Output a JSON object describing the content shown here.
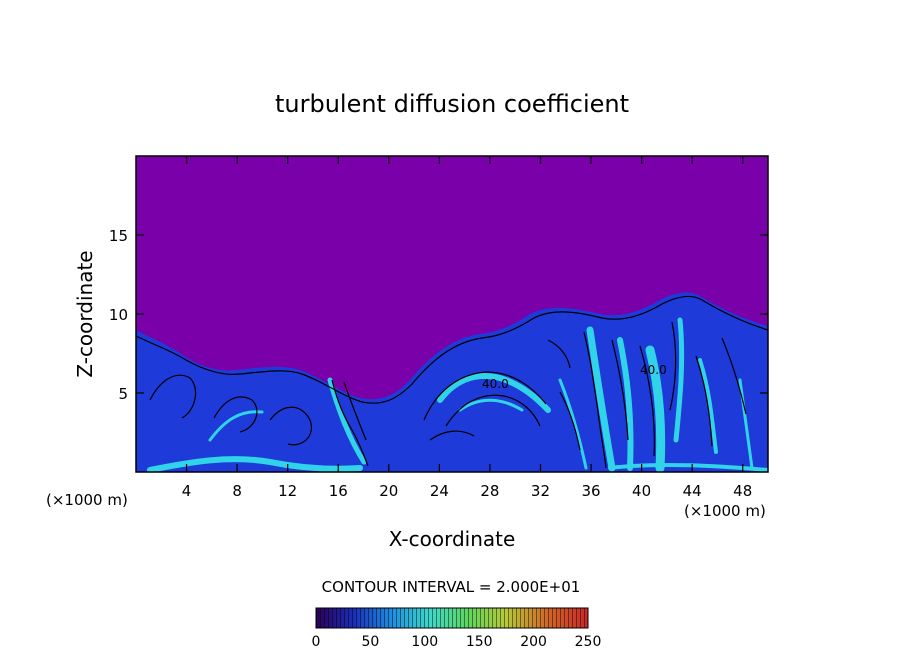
{
  "chart_data": {
    "type": "heatmap",
    "title": "turbulent diffusion coefficient",
    "xlabel": "X-coordinate",
    "ylabel": "Z-coordinate",
    "x_unit_left": "(×1000 m)",
    "x_unit_right": "(×1000 m)",
    "xlim": [
      0,
      50
    ],
    "ylim": [
      0,
      20
    ],
    "x_ticks": [
      4,
      8,
      12,
      16,
      20,
      24,
      28,
      32,
      36,
      40,
      44,
      48
    ],
    "y_ticks": [
      5,
      10,
      15
    ],
    "contour_interval_text": "CONTOUR INTERVAL = 2.000E+01",
    "contour_labels": [
      "40.0",
      "40.0"
    ],
    "colorbar": {
      "min": 0,
      "max": 250,
      "ticks": [
        0,
        50,
        100,
        150,
        200,
        250
      ],
      "colors": [
        "#2a0058",
        "#1a2fb8",
        "#1f8fe0",
        "#3fd8c8",
        "#5ed65e",
        "#b8c838",
        "#d06828",
        "#c82828"
      ]
    },
    "colors": {
      "background_field": "#7a00aa",
      "turbulence_low": "#1e3ad8",
      "turbulence_high": "#31d3e8",
      "contour": "#000000"
    },
    "grid": false
  }
}
